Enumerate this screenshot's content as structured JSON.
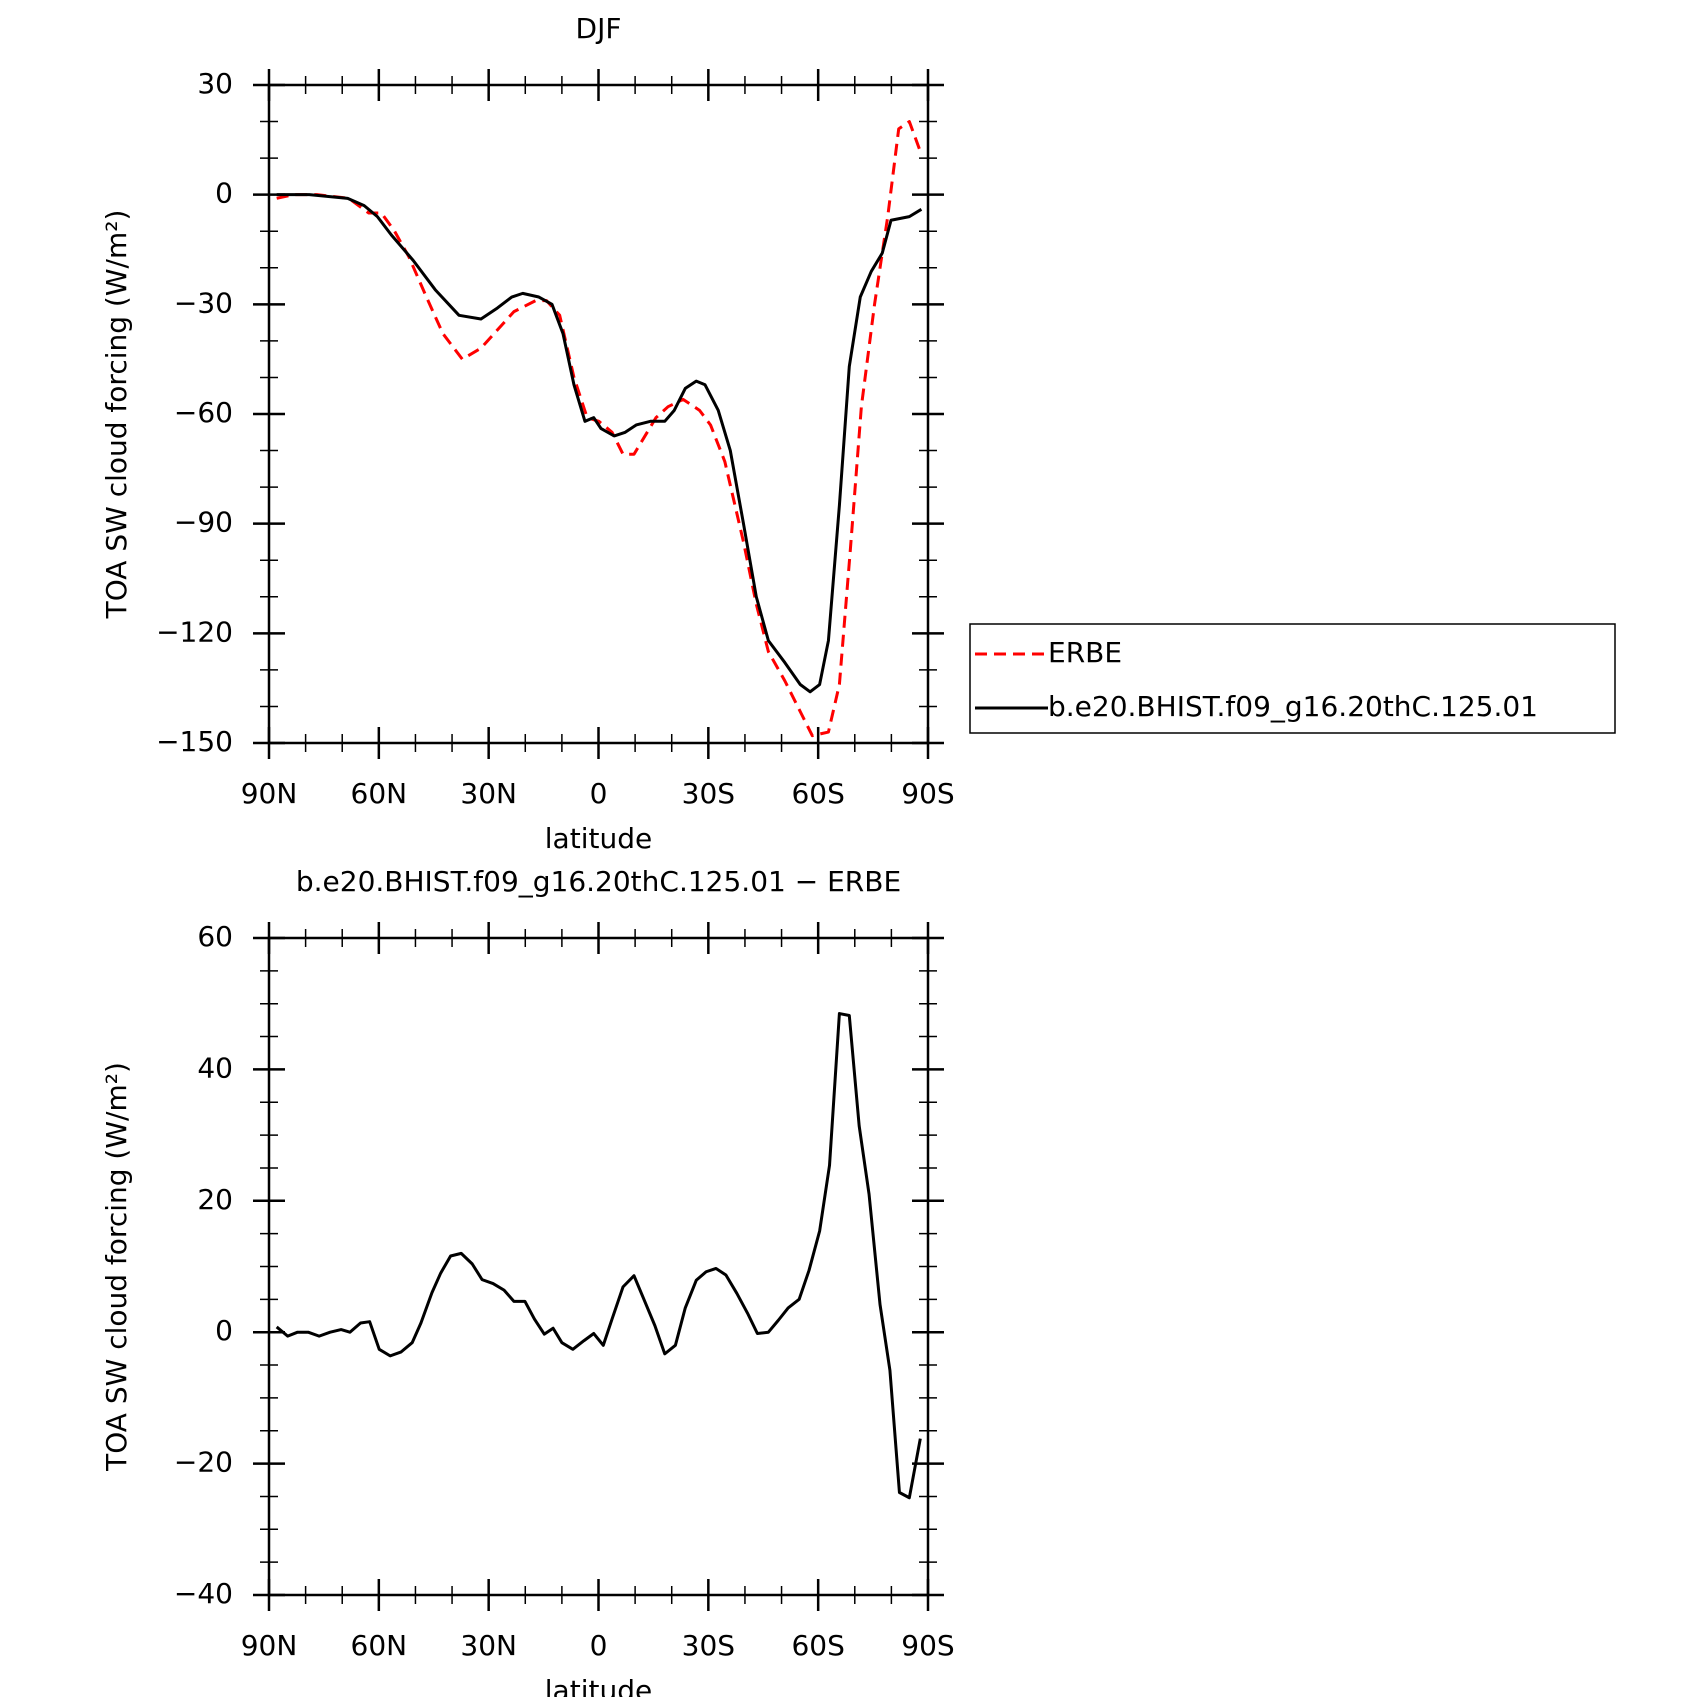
{
  "chart_data": [
    {
      "type": "line",
      "title": "DJF",
      "x_label": "latitude",
      "y_label": "TOA SW cloud forcing (W/m²)",
      "xlim": [
        90,
        -90
      ],
      "xticks": [
        {
          "value": 90,
          "label": "90N"
        },
        {
          "value": 60,
          "label": "60N"
        },
        {
          "value": 30,
          "label": "30N"
        },
        0,
        {
          "value": -30,
          "label": "30S"
        },
        {
          "value": -60,
          "label": "60S"
        },
        {
          "value": -90,
          "label": "90S"
        }
      ],
      "ylim": [
        -150,
        30
      ],
      "yticks": [
        {
          "value": -150,
          "label": "−150"
        },
        {
          "value": -120,
          "label": "−120"
        },
        {
          "value": -90,
          "label": "−90"
        },
        {
          "value": -60,
          "label": "−60"
        },
        {
          "value": -30,
          "label": "−30"
        },
        0,
        30
      ],
      "legend": "right",
      "series": [
        {
          "name": "ERBE",
          "color": "#ff0000",
          "dash": true,
          "x": [
            87.9,
            83.4,
            76.9,
            68.2,
            62.8,
            59.3,
            55.7,
            51.8,
            47.0,
            42.5,
            37.2,
            32.1,
            27.6,
            23.1,
            17.2,
            14.2,
            10.6,
            6.7,
            3.1,
            -0.1,
            -3.7,
            -6.7,
            -9.7,
            -12.7,
            -15.7,
            -19.0,
            -23.1,
            -27.6,
            -30.6,
            -34.5,
            -39.6,
            -43.1,
            -46.4,
            -50.9,
            -55.4,
            -58.4,
            -62.8,
            -65.8,
            -68.8,
            -71.8,
            -75.4,
            -79.0,
            -82.0,
            -84.9,
            -88.2
          ],
          "values": [
            -1,
            0,
            0,
            -1,
            -5,
            -5,
            -10,
            -17,
            -28,
            -38,
            -45,
            -42,
            -37,
            -32,
            -29,
            -29,
            -33,
            -50,
            -61,
            -62,
            -65,
            -71,
            -71,
            -66,
            -61,
            -58,
            -56,
            -59,
            -63,
            -73,
            -95,
            -112,
            -125,
            -133,
            -142,
            -148,
            -147,
            -134,
            -97,
            -58,
            -30,
            -6,
            18,
            20,
            11
          ]
        },
        {
          "name": "b.e20.BHIST.f09_g16.20thC.125.01",
          "color": "#000000",
          "dash": false,
          "x": [
            87.9,
            79.0,
            68.5,
            64.0,
            60.4,
            56.6,
            50.6,
            44.6,
            38.1,
            32.1,
            27.6,
            23.7,
            20.7,
            16.3,
            12.7,
            9.7,
            6.7,
            3.7,
            1.3,
            -0.7,
            -4.3,
            -7.3,
            -10.3,
            -14.2,
            -18.1,
            -20.7,
            -23.7,
            -26.7,
            -29.1,
            -32.7,
            -36.0,
            -39.6,
            -43.1,
            -46.4,
            -50.9,
            -55.1,
            -57.8,
            -60.4,
            -62.8,
            -65.8,
            -68.5,
            -71.5,
            -74.5,
            -77.5,
            -79.9,
            -84.9,
            -88.2
          ],
          "values": [
            0,
            0,
            -1,
            -3,
            -6,
            -11,
            -18,
            -26,
            -33,
            -34,
            -31,
            -28,
            -27,
            -28,
            -30,
            -38,
            -52,
            -62,
            -61,
            -64,
            -66,
            -65,
            -63,
            -62,
            -62,
            -59,
            -53,
            -51,
            -52,
            -59,
            -70,
            -90,
            -110,
            -122,
            -128,
            -134,
            -136,
            -134,
            -122,
            -85,
            -47,
            -28,
            -21,
            -16,
            -7,
            -6,
            -4
          ]
        }
      ]
    },
    {
      "type": "line",
      "title": "b.e20.BHIST.f09_g16.20thC.125.01 − ERBE",
      "x_label": "latitude",
      "y_label": "TOA SW cloud forcing (W/m²)",
      "xlim": [
        90,
        -90
      ],
      "xticks": [
        {
          "value": 90,
          "label": "90N"
        },
        {
          "value": 60,
          "label": "60N"
        },
        {
          "value": 30,
          "label": "30N"
        },
        0,
        {
          "value": -30,
          "label": "30S"
        },
        {
          "value": -60,
          "label": "60S"
        },
        {
          "value": -90,
          "label": "90S"
        }
      ],
      "ylim": [
        -40,
        60
      ],
      "yticks": [
        {
          "value": -40,
          "label": "−40"
        },
        {
          "value": -20,
          "label": "−20"
        },
        0,
        20,
        40,
        60
      ],
      "color": "#000000",
      "x": [
        87.9,
        84.9,
        82.2,
        79.3,
        76.3,
        73.3,
        70.3,
        67.9,
        65.0,
        62.5,
        59.9,
        56.9,
        53.9,
        50.9,
        48.5,
        45.5,
        43.1,
        40.4,
        37.5,
        34.5,
        31.8,
        28.8,
        25.8,
        23.1,
        20.1,
        17.5,
        14.8,
        12.4,
        10.0,
        7.0,
        4.0,
        1.3,
        -1.3,
        -3.7,
        -6.7,
        -9.7,
        -12.4,
        -15.4,
        -18.1,
        -21.0,
        -23.7,
        -26.7,
        -29.4,
        -32.1,
        -34.8,
        -37.8,
        -40.7,
        -43.4,
        -46.4,
        -49.1,
        -51.8,
        -54.8,
        -57.5,
        -60.4,
        -63.1,
        -65.8,
        -68.5,
        -71.2,
        -73.9,
        -76.9,
        -79.6,
        -82.2,
        -84.9,
        -87.9
      ],
      "values": [
        0.8,
        -0.6,
        0,
        0,
        -0.6,
        0,
        0.4,
        0,
        1.4,
        1.6,
        -2.6,
        -3.6,
        -3,
        -1.6,
        1.4,
        6,
        9,
        11.6,
        12,
        10.4,
        8,
        7.4,
        6.4,
        4.7,
        4.7,
        2,
        -0.3,
        0.6,
        -1.6,
        -2.6,
        -1.3,
        -0.2,
        -2,
        2,
        6.9,
        8.6,
        5,
        1,
        -3.3,
        -2,
        3.7,
        7.9,
        9.2,
        9.7,
        8.7,
        5.9,
        2.9,
        -0.2,
        0,
        1.8,
        3.7,
        5,
        9.4,
        15.4,
        25.4,
        48.5,
        48.2,
        31.4,
        21,
        4.2,
        -5.8,
        -24.4,
        -25.2,
        -16.2
      ]
    }
  ]
}
